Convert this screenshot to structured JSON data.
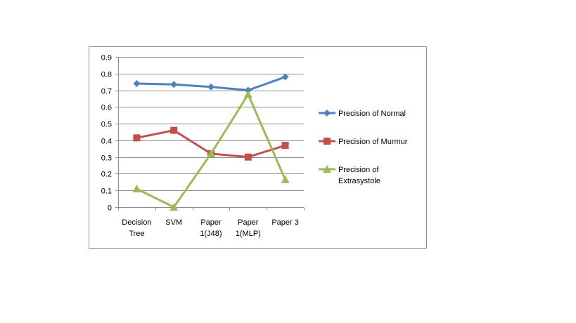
{
  "chart_data": {
    "type": "line",
    "categories": [
      [
        "Decision",
        "Tree"
      ],
      [
        "SVM"
      ],
      [
        "Paper",
        "1(J48)"
      ],
      [
        "Paper",
        "1(MLP)"
      ],
      [
        "Paper 3"
      ]
    ],
    "series": [
      {
        "name": [
          "Precision of Normal"
        ],
        "values": [
          0.74,
          0.735,
          0.72,
          0.7,
          0.78
        ],
        "color": "#4f81bd",
        "marker": "diamond"
      },
      {
        "name": [
          "Precision of Murmur"
        ],
        "values": [
          0.415,
          0.46,
          0.32,
          0.3,
          0.37
        ],
        "color": "#c0504d",
        "marker": "square"
      },
      {
        "name": [
          "Precision of",
          "Extrasystole"
        ],
        "values": [
          0.11,
          0.0,
          0.32,
          0.675,
          0.165
        ],
        "color": "#9bbb59",
        "marker": "triangle"
      }
    ],
    "yticks": [
      "0",
      "0.1",
      "0.2",
      "0.3",
      "0.4",
      "0.5",
      "0.6",
      "0.7",
      "0.8",
      "0.9"
    ],
    "ylim": [
      0,
      0.9
    ],
    "grid": true,
    "legend": "right"
  }
}
